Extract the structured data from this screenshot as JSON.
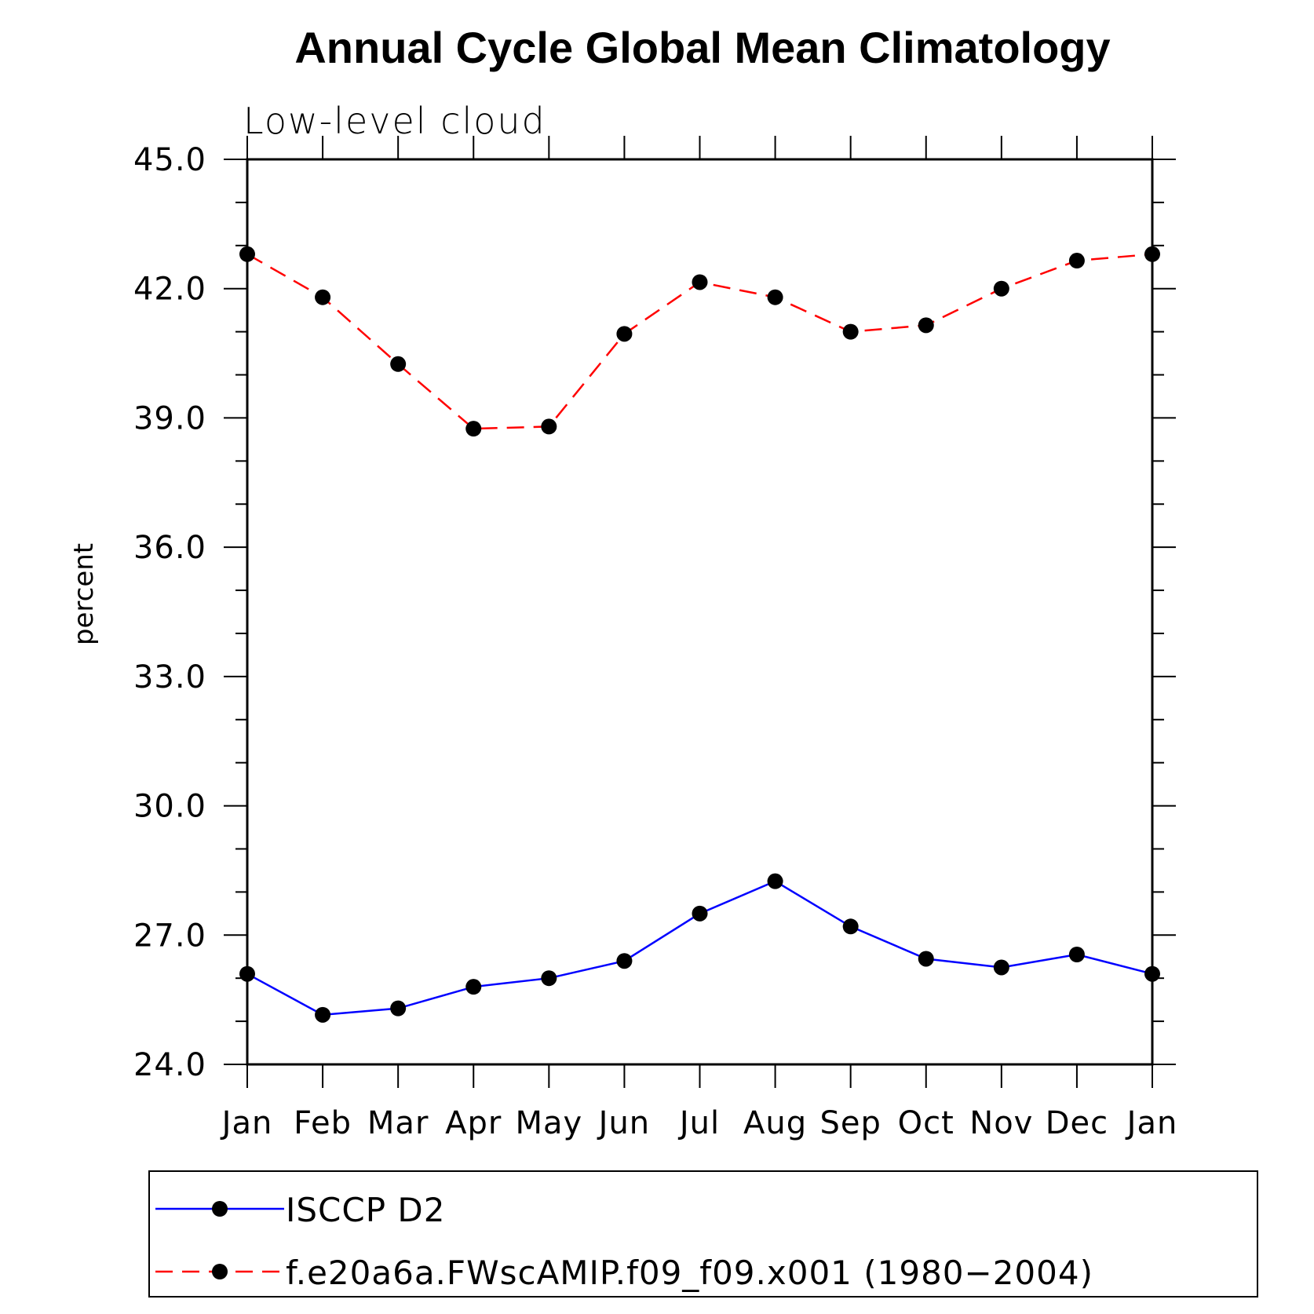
{
  "chart_data": {
    "type": "line",
    "title": "Annual Cycle Global Mean Climatology",
    "subtitle": "Low-level cloud",
    "xlabel": "",
    "ylabel": "percent",
    "categories": [
      "Jan",
      "Feb",
      "Mar",
      "Apr",
      "May",
      "Jun",
      "Jul",
      "Aug",
      "Sep",
      "Oct",
      "Nov",
      "Dec",
      "Jan"
    ],
    "ylim": [
      24.0,
      45.0
    ],
    "yticks": [
      "24.0",
      "27.0",
      "30.0",
      "33.0",
      "36.0",
      "39.0",
      "42.0",
      "45.0"
    ],
    "series": [
      {
        "name": "ISCCP D2",
        "color": "#0000ff",
        "dash": "solid",
        "values": [
          26.1,
          25.15,
          25.3,
          25.8,
          26.0,
          26.4,
          27.5,
          28.25,
          27.2,
          26.45,
          26.25,
          26.55,
          26.1
        ]
      },
      {
        "name": "f.e20a6a.FWscAMIP.f09_f09.x001 (1980−2004)",
        "color": "#ff0000",
        "dash": "dashed",
        "values": [
          42.8,
          41.8,
          40.25,
          38.75,
          38.8,
          40.95,
          42.15,
          41.8,
          41.0,
          41.15,
          42.0,
          42.65,
          42.8
        ]
      }
    ]
  }
}
